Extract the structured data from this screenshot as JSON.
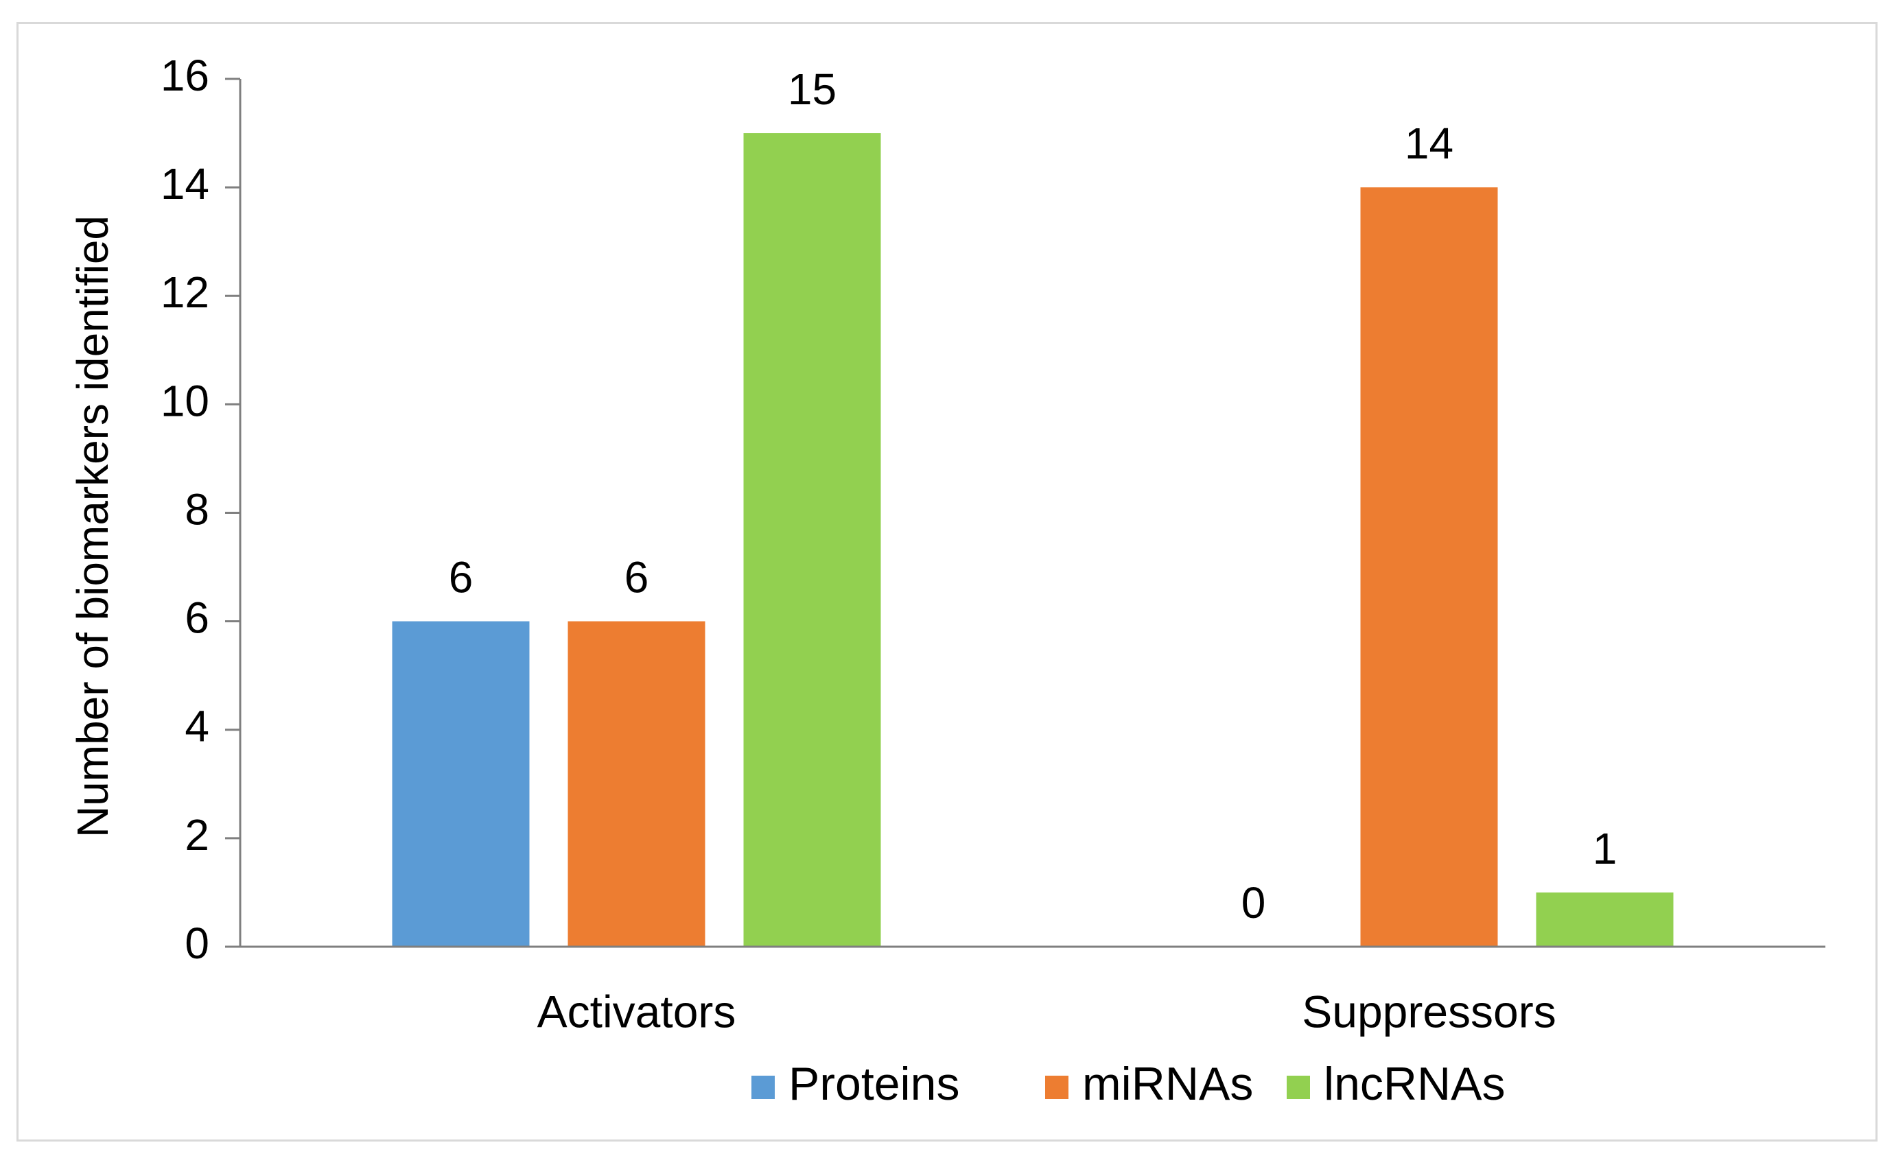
{
  "chart_data": {
    "type": "bar",
    "title": "",
    "xlabel": "",
    "ylabel": "Number of biomarkers identified",
    "categories": [
      "Activators",
      "Suppressors"
    ],
    "series": [
      {
        "name": "Proteins",
        "color": "#5b9bd5",
        "values": [
          6,
          0
        ]
      },
      {
        "name": "miRNAs",
        "color": "#ed7d31",
        "values": [
          6,
          14
        ]
      },
      {
        "name": "lncRNAs",
        "color": "#92d050",
        "values": [
          15,
          1
        ]
      }
    ],
    "ylim": [
      0,
      16
    ],
    "yticks": [
      0,
      2,
      4,
      6,
      8,
      10,
      12,
      14,
      16
    ],
    "grid": false,
    "data_labels": true,
    "legend_position": "bottom"
  }
}
